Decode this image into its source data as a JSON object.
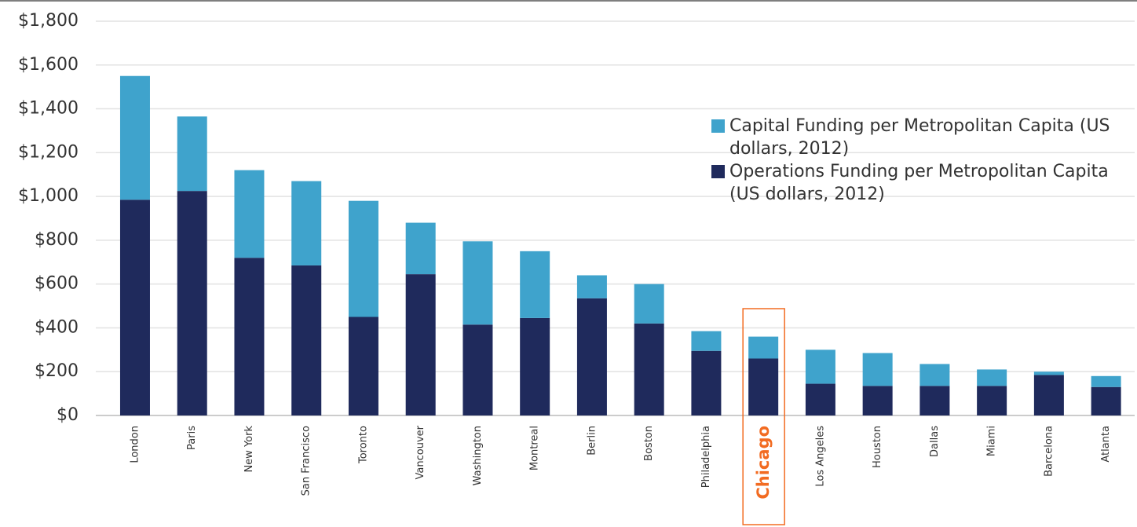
{
  "chart_data": {
    "type": "stacked_bar",
    "categories": [
      "London",
      "Paris",
      "New York",
      "San Francisco",
      "Toronto",
      "Vancouver",
      "Washington",
      "Montreal",
      "Berlin",
      "Boston",
      "Philadelphia",
      "Chicago",
      "Los Angeles",
      "Houston",
      "Dallas",
      "Miami",
      "Barcelona",
      "Atlanta"
    ],
    "series": [
      {
        "name": "Operations Funding per Metropolitan Capita (US dollars, 2012)",
        "color": "#1f2a5c",
        "values": [
          985,
          1025,
          720,
          685,
          450,
          645,
          415,
          445,
          535,
          420,
          295,
          260,
          145,
          135,
          135,
          135,
          185,
          130
        ]
      },
      {
        "name": "Capital Funding per Metropolitan Capita (US dollars, 2012)",
        "color": "#3fa3cc",
        "values": [
          565,
          340,
          400,
          385,
          530,
          235,
          380,
          305,
          105,
          180,
          90,
          100,
          155,
          150,
          100,
          75,
          15,
          50
        ]
      }
    ],
    "ylim": [
      0,
      1800
    ],
    "yticks": [
      {
        "value": 0,
        "label": "$0"
      },
      {
        "value": 200,
        "label": "$200"
      },
      {
        "value": 400,
        "label": "$400"
      },
      {
        "value": 600,
        "label": "$600"
      },
      {
        "value": 800,
        "label": "$800"
      },
      {
        "value": 1000,
        "label": "$1,000"
      },
      {
        "value": 1200,
        "label": "$1,200"
      },
      {
        "value": 1400,
        "label": "$1,400"
      },
      {
        "value": 1600,
        "label": "$1,600"
      },
      {
        "value": 1800,
        "label": "$1,800"
      }
    ],
    "grid": true,
    "highlight": 11,
    "highlight_color": "#f26b21"
  }
}
